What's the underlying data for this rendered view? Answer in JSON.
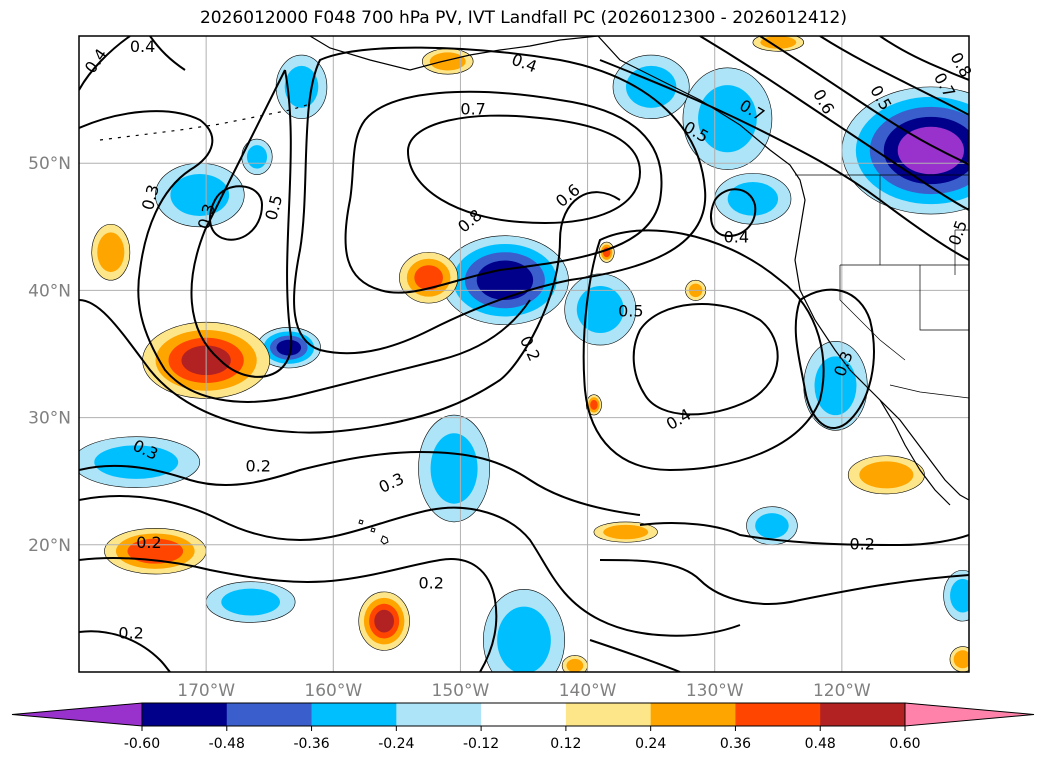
{
  "title": "2026012000 F048 700 hPa PV, IVT Landfall PC (2026012300 - 2026012412)",
  "map": {
    "projection": "PlateCarree",
    "lon_range": [
      -180,
      -110
    ],
    "lat_range": [
      10,
      60
    ],
    "lat_ticks": [
      {
        "value": 20,
        "label": "20°N"
      },
      {
        "value": 30,
        "label": "30°N"
      },
      {
        "value": 40,
        "label": "40°N"
      },
      {
        "value": 50,
        "label": "50°N"
      }
    ],
    "lon_ticks": [
      {
        "value": -170,
        "label": "170°W"
      },
      {
        "value": -160,
        "label": "160°W"
      },
      {
        "value": -150,
        "label": "150°W"
      },
      {
        "value": -140,
        "label": "140°W"
      },
      {
        "value": -130,
        "label": "130°W"
      },
      {
        "value": -120,
        "label": "120°W"
      }
    ],
    "contour_labels": [
      {
        "text": "0.4",
        "lon": -178.6,
        "lat": 58.0,
        "rot": -55
      },
      {
        "text": "0.4",
        "lon": -175.0,
        "lat": 59.1,
        "rot": 0
      },
      {
        "text": "0.4",
        "lon": -145.0,
        "lat": 57.8,
        "rot": 20
      },
      {
        "text": "0.7",
        "lon": -149.0,
        "lat": 54.2,
        "rot": 0
      },
      {
        "text": "0.8",
        "lon": -149.2,
        "lat": 45.4,
        "rot": -40
      },
      {
        "text": "0.6",
        "lon": -141.5,
        "lat": 47.4,
        "rot": -40
      },
      {
        "text": "0.5",
        "lon": -164.6,
        "lat": 46.5,
        "rot": -75
      },
      {
        "text": "0.3",
        "lon": -169.9,
        "lat": 45.8,
        "rot": -75
      },
      {
        "text": "0.3",
        "lon": -174.3,
        "lat": 47.3,
        "rot": -75
      },
      {
        "text": "0.5",
        "lon": -136.6,
        "lat": 38.3,
        "rot": 0
      },
      {
        "text": "0.2",
        "lon": -144.6,
        "lat": 35.4,
        "rot": 65
      },
      {
        "text": "0.4",
        "lon": -132.8,
        "lat": 29.8,
        "rot": -30
      },
      {
        "text": "0.4",
        "lon": -128.3,
        "lat": 44.1,
        "rot": 0
      },
      {
        "text": "0.7",
        "lon": -127.1,
        "lat": 54.1,
        "rot": 30
      },
      {
        "text": "0.5",
        "lon": -131.5,
        "lat": 52.4,
        "rot": 30
      },
      {
        "text": "0.6",
        "lon": -121.5,
        "lat": 54.8,
        "rot": 60
      },
      {
        "text": "0.5",
        "lon": -117.0,
        "lat": 55.1,
        "rot": 60
      },
      {
        "text": "0.7",
        "lon": -112.0,
        "lat": 56.1,
        "rot": 60
      },
      {
        "text": "0.8",
        "lon": -110.7,
        "lat": 57.7,
        "rot": 60
      },
      {
        "text": "0.3",
        "lon": -119.8,
        "lat": 34.2,
        "rot": -70
      },
      {
        "text": "0.5",
        "lon": -110.8,
        "lat": 44.5,
        "rot": -70
      },
      {
        "text": "0.3",
        "lon": -174.8,
        "lat": 27.4,
        "rot": 25
      },
      {
        "text": "0.2",
        "lon": -165.9,
        "lat": 26.1,
        "rot": 0
      },
      {
        "text": "0.3",
        "lon": -155.4,
        "lat": 24.8,
        "rot": -25
      },
      {
        "text": "0.2",
        "lon": -174.5,
        "lat": 20.1,
        "rot": 0
      },
      {
        "text": "0.2",
        "lon": -152.3,
        "lat": 16.9,
        "rot": 0
      },
      {
        "text": "0.2",
        "lon": -175.9,
        "lat": 13.0,
        "rot": 0
      },
      {
        "text": "0.2",
        "lon": -118.4,
        "lat": 20.0,
        "rot": 0
      }
    ],
    "blobs": [
      {
        "lon": -170.5,
        "lat": 47.5,
        "rx": 3.5,
        "ry": 2.5,
        "level": -0.3
      },
      {
        "lon": -163.5,
        "lat": 35.5,
        "rx": 2.5,
        "ry": 1.6,
        "level": -0.5
      },
      {
        "lon": -146.5,
        "lat": 40.8,
        "rx": 5.0,
        "ry": 3.5,
        "level": -0.55
      },
      {
        "lon": -139.0,
        "lat": 38.5,
        "rx": 2.8,
        "ry": 2.8,
        "level": -0.3
      },
      {
        "lon": -150.5,
        "lat": 26.0,
        "rx": 2.8,
        "ry": 4.2,
        "level": -0.3
      },
      {
        "lon": -145.0,
        "lat": 12.5,
        "rx": 3.2,
        "ry": 4.0,
        "level": -0.3
      },
      {
        "lon": -166.5,
        "lat": 15.5,
        "rx": 3.5,
        "ry": 1.6,
        "level": -0.3
      },
      {
        "lon": -127.0,
        "lat": 47.2,
        "rx": 3.0,
        "ry": 2.0,
        "level": -0.3
      },
      {
        "lon": -129.0,
        "lat": 53.5,
        "rx": 3.5,
        "ry": 4.0,
        "level": -0.3
      },
      {
        "lon": -113.0,
        "lat": 51.0,
        "rx": 7.0,
        "ry": 5.0,
        "level": -0.65
      },
      {
        "lon": -125.5,
        "lat": 21.5,
        "rx": 2.0,
        "ry": 1.5,
        "level": -0.3
      },
      {
        "lon": -120.5,
        "lat": 32.5,
        "rx": 2.5,
        "ry": 3.5,
        "level": -0.3
      },
      {
        "lon": -175.5,
        "lat": 26.5,
        "rx": 5.0,
        "ry": 2.0,
        "level": -0.3
      },
      {
        "lon": -162.5,
        "lat": 56.0,
        "rx": 2.0,
        "ry": 2.5,
        "level": -0.3
      },
      {
        "lon": -135.0,
        "lat": 56.0,
        "rx": 3.0,
        "ry": 2.5,
        "level": -0.3
      },
      {
        "lon": -110.5,
        "lat": 16.0,
        "rx": 1.5,
        "ry": 2.0,
        "level": -0.3
      },
      {
        "lon": -166.0,
        "lat": 50.5,
        "rx": 1.2,
        "ry": 1.4,
        "level": -0.3
      },
      {
        "lon": -131.5,
        "lat": 40.0,
        "rx": 0.8,
        "ry": 0.8,
        "level": 0.3
      },
      {
        "lon": -170.0,
        "lat": 34.5,
        "rx": 5.0,
        "ry": 3.0,
        "level": 0.5
      },
      {
        "lon": -152.5,
        "lat": 41.0,
        "rx": 2.3,
        "ry": 2.0,
        "level": 0.4
      },
      {
        "lon": -174.0,
        "lat": 19.5,
        "rx": 4.0,
        "ry": 1.8,
        "level": 0.45
      },
      {
        "lon": -156.0,
        "lat": 14.0,
        "rx": 2.0,
        "ry": 2.3,
        "level": 0.5
      },
      {
        "lon": -137.0,
        "lat": 21.0,
        "rx": 2.5,
        "ry": 0.8,
        "level": 0.35
      },
      {
        "lon": -116.5,
        "lat": 25.5,
        "rx": 3.0,
        "ry": 1.5,
        "level": 0.35
      },
      {
        "lon": -151.0,
        "lat": 58.0,
        "rx": 2.0,
        "ry": 1.0,
        "level": 0.35
      },
      {
        "lon": -125.0,
        "lat": 59.5,
        "rx": 2.0,
        "ry": 0.7,
        "level": 0.35
      },
      {
        "lon": -177.5,
        "lat": 43.0,
        "rx": 1.5,
        "ry": 2.2,
        "level": 0.35
      },
      {
        "lon": -110.5,
        "lat": 11.0,
        "rx": 1.0,
        "ry": 1.0,
        "level": 0.35
      },
      {
        "lon": -141.0,
        "lat": 10.5,
        "rx": 1.0,
        "ry": 0.8,
        "level": 0.3
      },
      {
        "lon": -139.5,
        "lat": 31.0,
        "rx": 0.6,
        "ry": 0.8,
        "level": 0.4
      },
      {
        "lon": -138.5,
        "lat": 43.0,
        "rx": 0.6,
        "ry": 0.8,
        "level": 0.4
      }
    ]
  },
  "colorbar": {
    "colors": [
      "#9932cc",
      "#00008b",
      "#3a5fcd",
      "#00bfff",
      "#ade4f7",
      "#ffffff",
      "#fde68a",
      "#ffa500",
      "#ff4500",
      "#b22222",
      "#ff82ab"
    ],
    "ticks": [
      "-0.60",
      "-0.48",
      "-0.36",
      "-0.24",
      "-0.12",
      "0.12",
      "0.24",
      "0.36",
      "0.48",
      "0.60"
    ]
  }
}
